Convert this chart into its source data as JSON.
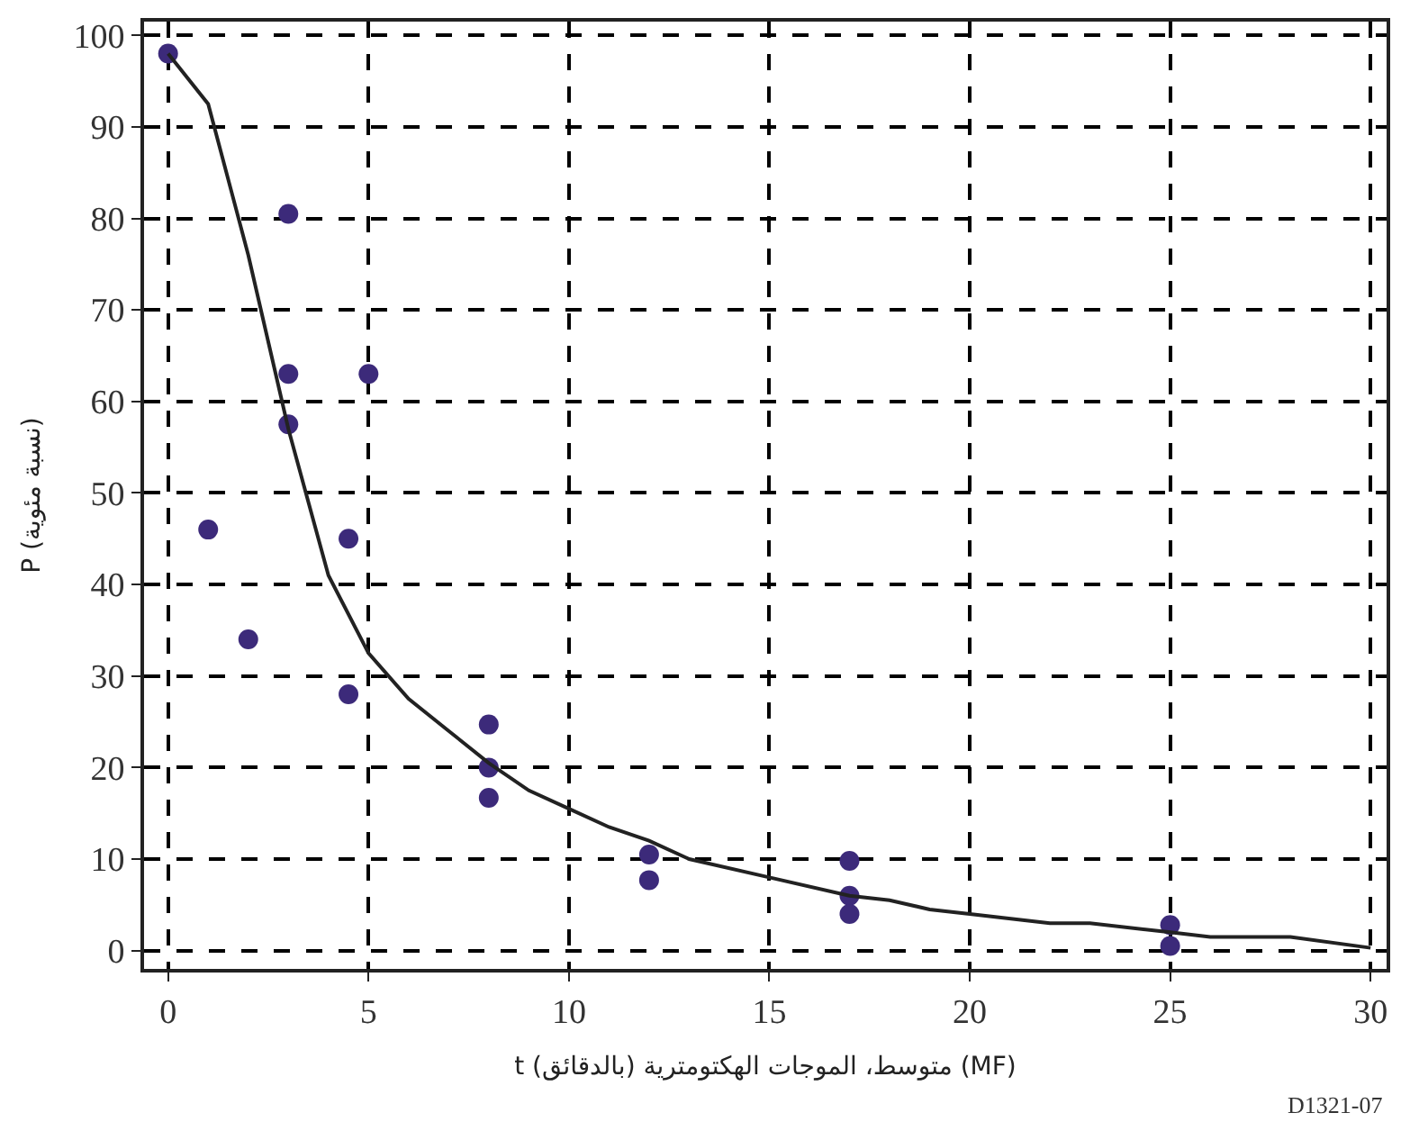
{
  "chart_data": {
    "type": "scatter",
    "xlabel": "t (بالدقائق) متوسط، الموجات الهكتومترية (MF)",
    "ylabel": "P (نسبة مئوية)",
    "annotations": [
      "D1321-07"
    ],
    "xlim": [
      -0.6,
      30.4
    ],
    "xticks": [
      0,
      5,
      10,
      15,
      20,
      25,
      30
    ],
    "ylim": [
      -2,
      101.5
    ],
    "yticks": [
      0,
      10,
      20,
      30,
      40,
      50,
      60,
      70,
      80,
      90,
      100
    ],
    "grid": true,
    "series": [
      {
        "color": "#3c2a7a",
        "marker": "circle",
        "x": [
          0,
          1,
          2,
          3,
          3,
          3,
          4.5,
          4.5,
          5,
          8,
          8,
          8,
          12,
          12,
          17,
          17,
          17,
          25,
          25
        ],
        "values": [
          98,
          46,
          34,
          80.5,
          63,
          57.5,
          45,
          28,
          63,
          24.7,
          20,
          16.7,
          10.5,
          7.7,
          9.8,
          6,
          4,
          2.8,
          0.5
        ]
      },
      {
        "type": "line",
        "color": "#222222",
        "marker": "none",
        "line_style": "solid",
        "x": [
          0,
          1,
          2,
          3,
          4,
          5,
          6,
          7,
          8,
          9,
          10,
          11,
          12,
          13,
          15,
          17,
          18,
          19,
          20,
          22,
          23,
          25,
          26,
          28,
          30
        ],
        "values": [
          98,
          92.5,
          76,
          57,
          41,
          32.5,
          27.5,
          24,
          20.5,
          17.5,
          15.5,
          13.5,
          12,
          10,
          8,
          6,
          5.5,
          4.5,
          4,
          3,
          3,
          2,
          1.5,
          1.5,
          0.3
        ]
      }
    ]
  }
}
